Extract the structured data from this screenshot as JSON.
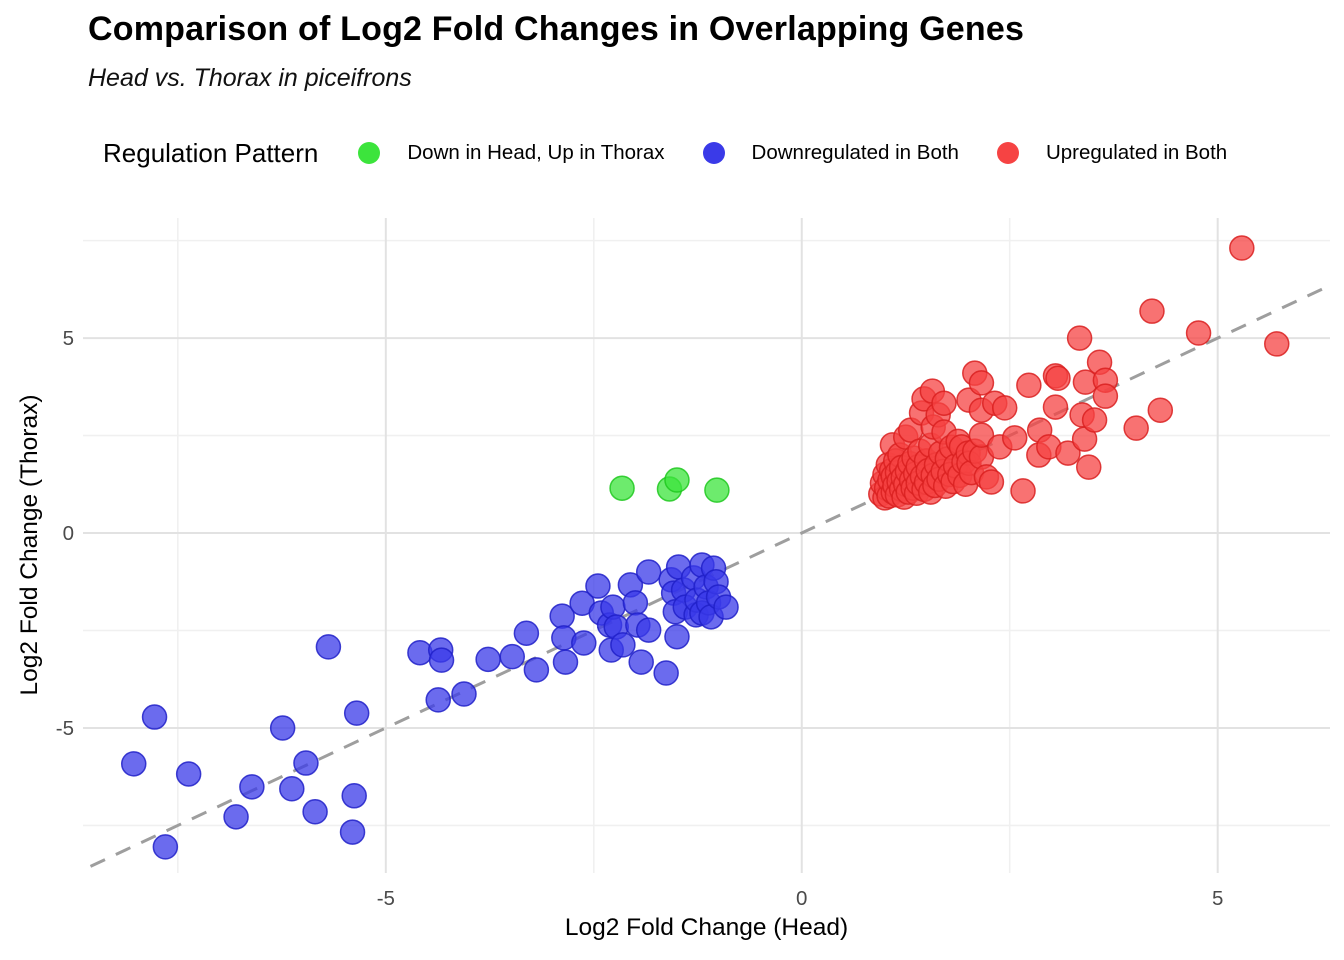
{
  "chart_data": {
    "type": "scatter",
    "title": "Comparison of Log2 Fold Changes in Overlapping Genes",
    "subtitle": "Head vs. Thorax in piceifrons",
    "xlabel": "Log2 Fold Change (Head)",
    "ylabel": "Log2 Fold Change (Thorax)",
    "legend_title": "Regulation Pattern",
    "legend_position": "top",
    "grid": "on",
    "background": "#ffffff",
    "major_grid_color": "#e2e2e2",
    "minor_grid_color": "#f0f0f0",
    "tick_label_color": "#4a4a4a",
    "xlim": [
      -8.64,
      6.35
    ],
    "ylim": [
      -8.72,
      8.08
    ],
    "x_major_ticks": [
      -5,
      0,
      5
    ],
    "y_major_ticks": [
      -5,
      0,
      5
    ],
    "x_minor_ticks": [
      -7.5,
      -2.5,
      2.5
    ],
    "y_minor_ticks": [
      -7.5,
      -2.5,
      2.5,
      7.5
    ],
    "identity_line": {
      "from": -8.55,
      "to": 6.35,
      "color": "#9e9e9e",
      "style": "dashed",
      "width": 3
    },
    "point_radius": 12,
    "point_opacity": 0.75,
    "series": [
      {
        "name": "Down in Head, Up in Thorax",
        "color": "#3ce43c",
        "stroke": "#1ec81e",
        "points": [
          [
            -2.16,
            1.15
          ],
          [
            -1.59,
            1.13
          ],
          [
            -1.5,
            1.36
          ],
          [
            -1.02,
            1.1
          ]
        ]
      },
      {
        "name": "Downregulated in Both",
        "color": "#3a3ae8",
        "stroke": "#2020c8",
        "points": [
          [
            -8.03,
            -5.92
          ],
          [
            -7.78,
            -4.72
          ],
          [
            -7.65,
            -8.05
          ],
          [
            -7.37,
            -6.18
          ],
          [
            -6.8,
            -7.28
          ],
          [
            -6.61,
            -6.51
          ],
          [
            -6.24,
            -5.0
          ],
          [
            -6.13,
            -6.56
          ],
          [
            -5.96,
            -5.9
          ],
          [
            -5.85,
            -7.15
          ],
          [
            -5.69,
            -2.92
          ],
          [
            -5.4,
            -7.67
          ],
          [
            -5.38,
            -6.74
          ],
          [
            -5.35,
            -4.62
          ],
          [
            -4.59,
            -3.07
          ],
          [
            -4.37,
            -4.28
          ],
          [
            -4.34,
            -3.0
          ],
          [
            -4.33,
            -3.26
          ],
          [
            -4.06,
            -4.13
          ],
          [
            -3.77,
            -3.24
          ],
          [
            -3.48,
            -3.17
          ],
          [
            -3.31,
            -2.57
          ],
          [
            -3.19,
            -3.51
          ],
          [
            -2.88,
            -2.13
          ],
          [
            -2.86,
            -2.69
          ],
          [
            -2.84,
            -3.31
          ],
          [
            -2.64,
            -1.8
          ],
          [
            -2.62,
            -2.82
          ],
          [
            -2.45,
            -1.36
          ],
          [
            -2.41,
            -2.05
          ],
          [
            -2.31,
            -2.36
          ],
          [
            -2.29,
            -3.0
          ],
          [
            -2.27,
            -1.9
          ],
          [
            -2.23,
            -2.41
          ],
          [
            -2.15,
            -2.87
          ],
          [
            -2.06,
            -1.33
          ],
          [
            -2.0,
            -1.79
          ],
          [
            -1.97,
            -2.36
          ],
          [
            -1.93,
            -3.31
          ],
          [
            -1.84,
            -1.0
          ],
          [
            -1.84,
            -2.49
          ],
          [
            -1.63,
            -3.59
          ],
          [
            -1.57,
            -1.2
          ],
          [
            -1.54,
            -1.54
          ],
          [
            -1.52,
            -2.02
          ],
          [
            -1.5,
            -2.66
          ],
          [
            -1.48,
            -0.87
          ],
          [
            -1.42,
            -1.46
          ],
          [
            -1.4,
            -1.9
          ],
          [
            -1.3,
            -1.15
          ],
          [
            -1.27,
            -2.1
          ],
          [
            -1.26,
            -1.72
          ],
          [
            -1.2,
            -0.82
          ],
          [
            -1.2,
            -2.05
          ],
          [
            -1.15,
            -1.38
          ],
          [
            -1.12,
            -1.79
          ],
          [
            -1.09,
            -2.15
          ],
          [
            -1.06,
            -0.9
          ],
          [
            -1.03,
            -1.25
          ],
          [
            -1.0,
            -1.64
          ],
          [
            -0.91,
            -1.9
          ]
        ]
      },
      {
        "name": "Upregulated in Both",
        "color": "#f64343",
        "stroke": "#d92020",
        "points": [
          [
            0.95,
            1.0
          ],
          [
            0.97,
            1.28
          ],
          [
            1.0,
            0.9
          ],
          [
            1.0,
            1.5
          ],
          [
            1.02,
            1.15
          ],
          [
            1.04,
            1.75
          ],
          [
            1.05,
            0.95
          ],
          [
            1.06,
            1.35
          ],
          [
            1.08,
            1.6
          ],
          [
            1.09,
            2.26
          ],
          [
            1.1,
            1.05
          ],
          [
            1.1,
            1.45
          ],
          [
            1.12,
            1.22
          ],
          [
            1.13,
            1.85
          ],
          [
            1.15,
            0.98
          ],
          [
            1.15,
            1.55
          ],
          [
            1.17,
            1.32
          ],
          [
            1.18,
            2.0
          ],
          [
            1.2,
            1.12
          ],
          [
            1.2,
            1.68
          ],
          [
            1.22,
            1.42
          ],
          [
            1.23,
            0.92
          ],
          [
            1.25,
            1.25
          ],
          [
            1.25,
            2.46
          ],
          [
            1.27,
            1.58
          ],
          [
            1.28,
            1.05
          ],
          [
            1.3,
            1.78
          ],
          [
            1.31,
            2.64
          ],
          [
            1.32,
            1.35
          ],
          [
            1.34,
            1.15
          ],
          [
            1.35,
            1.92
          ],
          [
            1.37,
            1.52
          ],
          [
            1.38,
            1.02
          ],
          [
            1.4,
            1.7
          ],
          [
            1.4,
            1.28
          ],
          [
            1.42,
            2.1
          ],
          [
            1.44,
            3.08
          ],
          [
            1.45,
            1.45
          ],
          [
            1.47,
            3.44
          ],
          [
            1.47,
            1.12
          ],
          [
            1.5,
            1.85
          ],
          [
            1.5,
            1.3
          ],
          [
            1.52,
            1.6
          ],
          [
            1.55,
            2.25
          ],
          [
            1.55,
            1.05
          ],
          [
            1.57,
            3.64
          ],
          [
            1.58,
            1.48
          ],
          [
            1.58,
            2.72
          ],
          [
            1.6,
            1.22
          ],
          [
            1.62,
            1.75
          ],
          [
            1.64,
            3.03
          ],
          [
            1.65,
            1.38
          ],
          [
            1.67,
            2.05
          ],
          [
            1.7,
            1.58
          ],
          [
            1.71,
            2.59
          ],
          [
            1.71,
            3.33
          ],
          [
            1.73,
            1.2
          ],
          [
            1.75,
            1.9
          ],
          [
            1.78,
            1.5
          ],
          [
            1.8,
            2.2
          ],
          [
            1.82,
            1.32
          ],
          [
            1.85,
            1.72
          ],
          [
            1.88,
            2.35
          ],
          [
            1.9,
            1.48
          ],
          [
            1.92,
            2.21
          ],
          [
            1.95,
            1.82
          ],
          [
            1.97,
            1.25
          ],
          [
            2.0,
            2.05
          ],
          [
            2.01,
            1.79
          ],
          [
            2.04,
            1.55
          ],
          [
            2.08,
            2.1
          ],
          [
            2.16,
            1.95
          ],
          [
            2.01,
            3.41
          ],
          [
            2.08,
            4.1
          ],
          [
            2.16,
            3.85
          ],
          [
            2.16,
            3.15
          ],
          [
            2.16,
            2.51
          ],
          [
            2.22,
            1.44
          ],
          [
            2.28,
            1.31
          ],
          [
            2.32,
            3.33
          ],
          [
            2.38,
            2.21
          ],
          [
            2.44,
            3.21
          ],
          [
            2.56,
            2.44
          ],
          [
            2.66,
            1.08
          ],
          [
            2.73,
            3.79
          ],
          [
            2.85,
            2.0
          ],
          [
            2.86,
            2.64
          ],
          [
            2.97,
            2.21
          ],
          [
            3.05,
            4.03
          ],
          [
            3.05,
            3.23
          ],
          [
            3.08,
            3.97
          ],
          [
            3.2,
            2.05
          ],
          [
            3.34,
            5.0
          ],
          [
            3.37,
            3.03
          ],
          [
            3.4,
            2.41
          ],
          [
            3.41,
            3.87
          ],
          [
            3.45,
            1.69
          ],
          [
            3.52,
            2.9
          ],
          [
            3.58,
            4.38
          ],
          [
            3.65,
            3.92
          ],
          [
            3.65,
            3.51
          ],
          [
            4.02,
            2.69
          ],
          [
            4.21,
            5.69
          ],
          [
            4.31,
            3.15
          ],
          [
            4.77,
            5.13
          ],
          [
            5.29,
            7.31
          ],
          [
            5.71,
            4.85
          ]
        ]
      }
    ]
  }
}
